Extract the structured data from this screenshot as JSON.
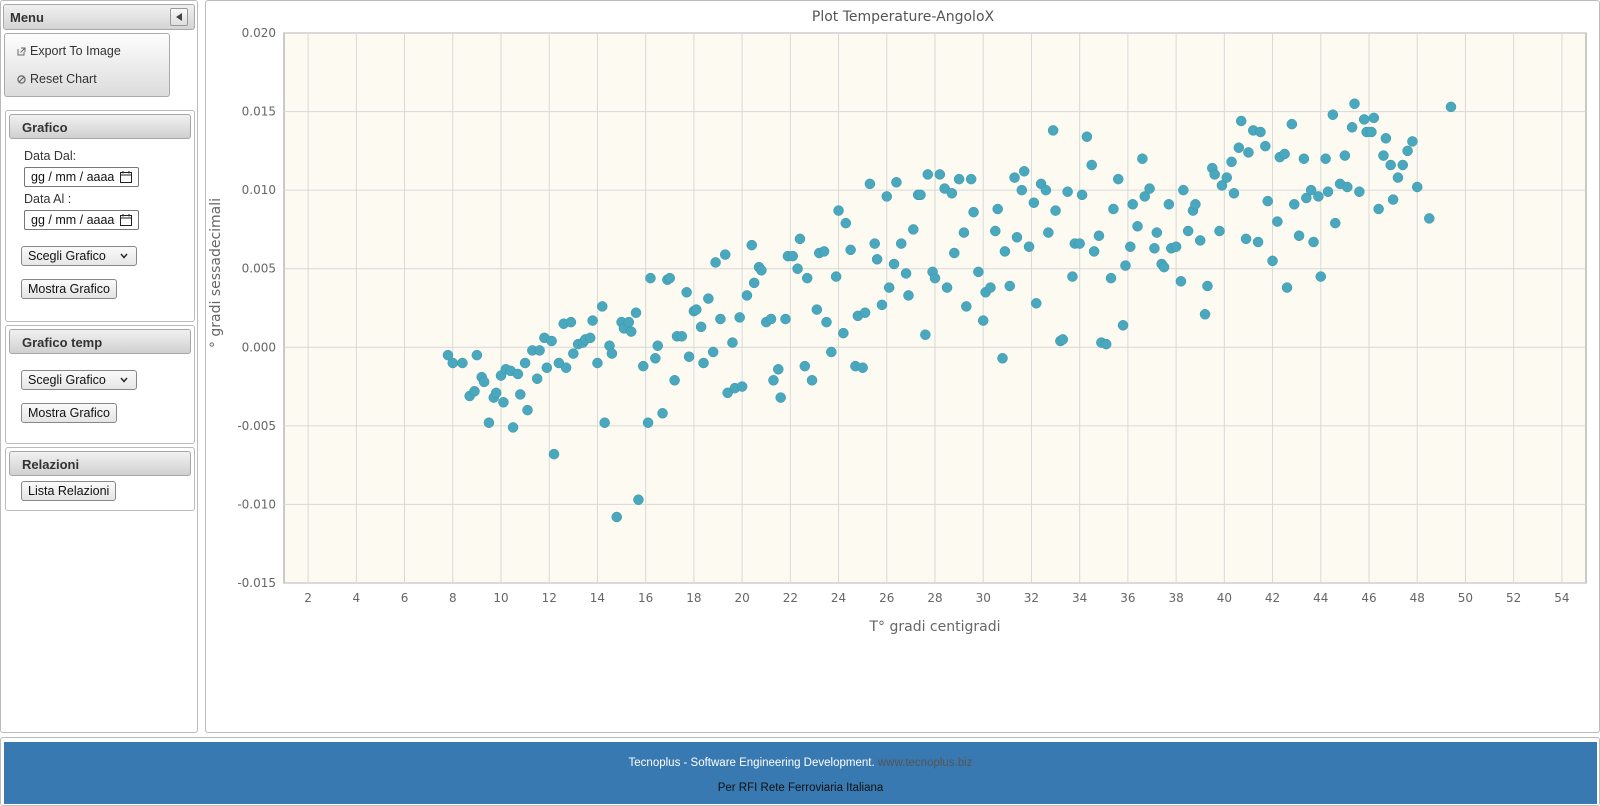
{
  "menu": {
    "title": "Menu",
    "items": [
      {
        "label": "Export To Image",
        "icon": "external-link-icon"
      },
      {
        "label": "Reset Chart",
        "icon": "ban-icon"
      }
    ]
  },
  "grafico": {
    "title": "Grafico",
    "date_from_label": "Data Dal:",
    "date_from_value": "gg / mm / aaaa",
    "date_to_label": "Data Al :",
    "date_to_value": "gg / mm / aaaa",
    "select_value": "Scegli Grafico",
    "show_button": "Mostra Grafico"
  },
  "grafico_temp": {
    "title": "Grafico temp",
    "select_value": "Scegli Grafico",
    "show_button": "Mostra Grafico"
  },
  "relazioni": {
    "title": "Relazioni",
    "list_button": "Lista Relazioni"
  },
  "footer": {
    "line1_text": "Tecnoplus - Software Engineering Development.",
    "line1_link": "www.tecnoplus.biz",
    "line2": "Per RFI Rete Ferroviaria Italiana"
  },
  "colors": {
    "point": "#4aa8be",
    "plot_bg": "#fdfbf1",
    "footer_bg": "#3879b2"
  },
  "chart_data": {
    "type": "scatter",
    "title": "Plot Temperature-AngoloX",
    "xlabel": "T° gradi centigradi",
    "ylabel": "° gradi sessadecimali",
    "xlim": [
      1,
      55
    ],
    "ylim": [
      -0.015,
      0.02
    ],
    "xticks": [
      2,
      4,
      6,
      8,
      10,
      12,
      14,
      16,
      18,
      20,
      22,
      24,
      26,
      28,
      30,
      32,
      34,
      36,
      38,
      40,
      42,
      44,
      46,
      48,
      50,
      52,
      54
    ],
    "xtick_labels": [
      "2",
      "4",
      "6",
      "8",
      "10",
      "12",
      "14",
      "16",
      "18",
      "20",
      "22",
      "24",
      "26",
      "28",
      "30",
      "32",
      "34",
      "36",
      "38",
      "40",
      "42",
      "44",
      "46",
      "48",
      "50",
      "52",
      "54"
    ],
    "yticks": [
      -0.015,
      -0.01,
      -0.005,
      0,
      0.005,
      0.01,
      0.015,
      0.02
    ],
    "ytick_labels": [
      "-0.015",
      "-0.010",
      "-0.005",
      "0.000",
      "0.005",
      "0.010",
      "0.015",
      "0.020"
    ],
    "grid": true,
    "legend": "none",
    "series": [
      {
        "points": [
          [
            7.8,
            -0.0005
          ],
          [
            8.0,
            -0.001
          ],
          [
            8.4,
            -0.001
          ],
          [
            8.7,
            -0.0031
          ],
          [
            8.9,
            -0.0028
          ],
          [
            9.0,
            -0.0005
          ],
          [
            9.2,
            -0.0019
          ],
          [
            9.3,
            -0.0022
          ],
          [
            9.5,
            -0.0048
          ],
          [
            9.7,
            -0.0032
          ],
          [
            9.8,
            -0.0029
          ],
          [
            10.0,
            -0.0018
          ],
          [
            10.1,
            -0.0035
          ],
          [
            10.2,
            -0.0014
          ],
          [
            10.4,
            -0.0015
          ],
          [
            10.5,
            -0.0051
          ],
          [
            10.7,
            -0.0017
          ],
          [
            10.8,
            -0.003
          ],
          [
            11.0,
            -0.001
          ],
          [
            11.1,
            -0.004
          ],
          [
            11.3,
            -0.0002
          ],
          [
            11.5,
            -0.002
          ],
          [
            11.6,
            -0.0002
          ],
          [
            11.8,
            0.0006
          ],
          [
            11.9,
            -0.0013
          ],
          [
            12.1,
            0.0004
          ],
          [
            12.2,
            -0.0068
          ],
          [
            12.4,
            -0.001
          ],
          [
            12.6,
            0.0015
          ],
          [
            12.7,
            -0.0013
          ],
          [
            12.9,
            0.0016
          ],
          [
            13.0,
            -0.0004
          ],
          [
            13.2,
            0.0002
          ],
          [
            13.4,
            0.0003
          ],
          [
            13.5,
            0.0005
          ],
          [
            13.7,
            0.0006
          ],
          [
            13.8,
            0.0017
          ],
          [
            14.0,
            -0.001
          ],
          [
            14.2,
            0.0026
          ],
          [
            14.3,
            -0.0048
          ],
          [
            14.5,
            0.0001
          ],
          [
            14.6,
            -0.0004
          ],
          [
            14.8,
            -0.0108
          ],
          [
            15.0,
            0.0016
          ],
          [
            15.1,
            0.0012
          ],
          [
            15.3,
            0.0016
          ],
          [
            15.4,
            0.001
          ],
          [
            15.6,
            0.0022
          ],
          [
            15.7,
            -0.0097
          ],
          [
            15.9,
            -0.0012
          ],
          [
            16.1,
            -0.0048
          ],
          [
            16.2,
            0.0044
          ],
          [
            16.4,
            -0.0007
          ],
          [
            16.5,
            0.0001
          ],
          [
            16.7,
            -0.0042
          ],
          [
            16.9,
            0.0043
          ],
          [
            17.0,
            0.0044
          ],
          [
            17.2,
            -0.0021
          ],
          [
            17.3,
            0.0007
          ],
          [
            17.5,
            0.0007
          ],
          [
            17.7,
            0.0035
          ],
          [
            17.8,
            -0.0006
          ],
          [
            18.0,
            0.0023
          ],
          [
            18.1,
            0.0024
          ],
          [
            18.3,
            0.0013
          ],
          [
            18.4,
            -0.001
          ],
          [
            18.6,
            0.0031
          ],
          [
            18.8,
            -0.0003
          ],
          [
            18.9,
            0.0054
          ],
          [
            19.1,
            0.0018
          ],
          [
            19.3,
            0.0059
          ],
          [
            19.4,
            -0.0029
          ],
          [
            19.6,
            0.0003
          ],
          [
            19.7,
            -0.0026
          ],
          [
            19.9,
            0.0019
          ],
          [
            20.0,
            -0.0025
          ],
          [
            20.2,
            0.0033
          ],
          [
            20.4,
            0.0065
          ],
          [
            20.5,
            0.0041
          ],
          [
            20.7,
            0.0051
          ],
          [
            20.8,
            0.0049
          ],
          [
            21.0,
            0.0016
          ],
          [
            21.2,
            0.0018
          ],
          [
            21.3,
            -0.0021
          ],
          [
            21.5,
            -0.0014
          ],
          [
            21.6,
            -0.0032
          ],
          [
            21.8,
            0.0018
          ],
          [
            21.9,
            0.0058
          ],
          [
            22.1,
            0.0058
          ],
          [
            22.3,
            0.005
          ],
          [
            22.4,
            0.0069
          ],
          [
            22.6,
            -0.0012
          ],
          [
            22.7,
            0.0044
          ],
          [
            22.9,
            -0.0021
          ],
          [
            23.1,
            0.0024
          ],
          [
            23.2,
            0.006
          ],
          [
            23.4,
            0.0061
          ],
          [
            23.5,
            0.0016
          ],
          [
            23.7,
            -0.0003
          ],
          [
            23.9,
            0.0045
          ],
          [
            24.0,
            0.0087
          ],
          [
            24.2,
            0.0009
          ],
          [
            24.3,
            0.0079
          ],
          [
            24.5,
            0.0062
          ],
          [
            24.7,
            -0.0012
          ],
          [
            24.8,
            0.002
          ],
          [
            25.0,
            -0.0013
          ],
          [
            25.1,
            0.0022
          ],
          [
            25.3,
            0.0104
          ],
          [
            25.5,
            0.0066
          ],
          [
            25.6,
            0.0056
          ],
          [
            25.8,
            0.0027
          ],
          [
            26.0,
            0.0096
          ],
          [
            26.1,
            0.0038
          ],
          [
            26.3,
            0.0053
          ],
          [
            26.4,
            0.0105
          ],
          [
            26.6,
            0.0066
          ],
          [
            26.8,
            0.0047
          ],
          [
            26.9,
            0.0033
          ],
          [
            27.1,
            0.0075
          ],
          [
            27.3,
            0.0097
          ],
          [
            27.4,
            0.0097
          ],
          [
            27.6,
            0.0008
          ],
          [
            27.7,
            0.011
          ],
          [
            27.9,
            0.0048
          ],
          [
            28.0,
            0.0044
          ],
          [
            28.2,
            0.011
          ],
          [
            28.4,
            0.0101
          ],
          [
            28.5,
            0.0038
          ],
          [
            28.7,
            0.0098
          ],
          [
            28.8,
            0.006
          ],
          [
            29.0,
            0.0107
          ],
          [
            29.2,
            0.0073
          ],
          [
            29.3,
            0.0026
          ],
          [
            29.5,
            0.0107
          ],
          [
            29.6,
            0.0086
          ],
          [
            29.8,
            0.0048
          ],
          [
            30.0,
            0.0017
          ],
          [
            30.1,
            0.0035
          ],
          [
            30.3,
            0.0038
          ],
          [
            30.5,
            0.0074
          ],
          [
            30.6,
            0.0088
          ],
          [
            30.8,
            -0.0007
          ],
          [
            30.9,
            0.0061
          ],
          [
            31.1,
            0.0039
          ],
          [
            31.3,
            0.0108
          ],
          [
            31.4,
            0.007
          ],
          [
            31.6,
            0.01
          ],
          [
            31.7,
            0.0112
          ],
          [
            31.9,
            0.0064
          ],
          [
            32.1,
            0.0092
          ],
          [
            32.2,
            0.0028
          ],
          [
            32.4,
            0.0104
          ],
          [
            32.6,
            0.01
          ],
          [
            32.7,
            0.0073
          ],
          [
            32.9,
            0.0138
          ],
          [
            33.0,
            0.0087
          ],
          [
            33.2,
            0.0004
          ],
          [
            33.3,
            0.0005
          ],
          [
            33.5,
            0.0099
          ],
          [
            33.7,
            0.0045
          ],
          [
            33.8,
            0.0066
          ],
          [
            34.0,
            0.0066
          ],
          [
            34.1,
            0.0097
          ],
          [
            34.3,
            0.0134
          ],
          [
            34.5,
            0.0116
          ],
          [
            34.6,
            0.0061
          ],
          [
            34.8,
            0.0071
          ],
          [
            34.9,
            0.0003
          ],
          [
            35.1,
            0.0002
          ],
          [
            35.3,
            0.0044
          ],
          [
            35.4,
            0.0088
          ],
          [
            35.6,
            0.0107
          ],
          [
            35.8,
            0.0014
          ],
          [
            35.9,
            0.0052
          ],
          [
            36.1,
            0.0064
          ],
          [
            36.2,
            0.0091
          ],
          [
            36.4,
            0.0077
          ],
          [
            36.6,
            0.012
          ],
          [
            36.7,
            0.0096
          ],
          [
            36.9,
            0.0101
          ],
          [
            37.1,
            0.0063
          ],
          [
            37.2,
            0.0073
          ],
          [
            37.4,
            0.0053
          ],
          [
            37.5,
            0.0051
          ],
          [
            37.7,
            0.0091
          ],
          [
            37.8,
            0.0063
          ],
          [
            38.0,
            0.0064
          ],
          [
            38.2,
            0.0042
          ],
          [
            38.3,
            0.01
          ],
          [
            38.5,
            0.0074
          ],
          [
            38.7,
            0.0087
          ],
          [
            38.8,
            0.0091
          ],
          [
            39.0,
            0.0068
          ],
          [
            39.2,
            0.0021
          ],
          [
            39.3,
            0.0039
          ],
          [
            39.5,
            0.0114
          ],
          [
            39.6,
            0.011
          ],
          [
            39.8,
            0.0074
          ],
          [
            39.9,
            0.0103
          ],
          [
            40.1,
            0.0108
          ],
          [
            40.3,
            0.0118
          ],
          [
            40.4,
            0.0098
          ],
          [
            40.6,
            0.0127
          ],
          [
            40.7,
            0.0144
          ],
          [
            40.9,
            0.0069
          ],
          [
            41.0,
            0.0124
          ],
          [
            41.2,
            0.0138
          ],
          [
            41.4,
            0.0067
          ],
          [
            41.5,
            0.0137
          ],
          [
            41.7,
            0.0128
          ],
          [
            41.8,
            0.0093
          ],
          [
            42.0,
            0.0055
          ],
          [
            42.2,
            0.008
          ],
          [
            42.3,
            0.0121
          ],
          [
            42.5,
            0.0123
          ],
          [
            42.6,
            0.0038
          ],
          [
            42.8,
            0.0142
          ],
          [
            42.9,
            0.0091
          ],
          [
            43.1,
            0.0071
          ],
          [
            43.3,
            0.012
          ],
          [
            43.4,
            0.0095
          ],
          [
            43.6,
            0.01
          ],
          [
            43.7,
            0.0067
          ],
          [
            43.9,
            0.0096
          ],
          [
            44.0,
            0.0045
          ],
          [
            44.2,
            0.012
          ],
          [
            44.3,
            0.0099
          ],
          [
            44.5,
            0.0148
          ],
          [
            44.6,
            0.0079
          ],
          [
            44.8,
            0.0104
          ],
          [
            45.0,
            0.0122
          ],
          [
            45.1,
            0.0102
          ],
          [
            45.3,
            0.014
          ],
          [
            45.4,
            0.0155
          ],
          [
            45.6,
            0.0099
          ],
          [
            45.8,
            0.0145
          ],
          [
            45.9,
            0.0137
          ],
          [
            46.1,
            0.0137
          ],
          [
            46.2,
            0.0146
          ],
          [
            46.4,
            0.0088
          ],
          [
            46.6,
            0.0122
          ],
          [
            46.7,
            0.0133
          ],
          [
            46.9,
            0.0116
          ],
          [
            47.0,
            0.0094
          ],
          [
            47.2,
            0.0108
          ],
          [
            47.4,
            0.0116
          ],
          [
            47.6,
            0.0125
          ],
          [
            47.8,
            0.0131
          ],
          [
            48.0,
            0.0102
          ],
          [
            48.5,
            0.0082
          ],
          [
            49.4,
            0.0153
          ]
        ]
      }
    ]
  }
}
